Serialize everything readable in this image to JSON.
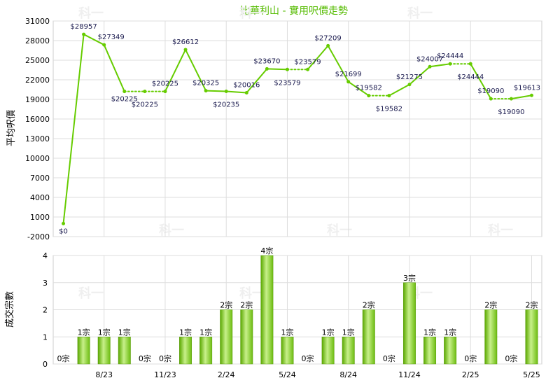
{
  "chart_data": [
    {
      "type": "line",
      "title": "比華利山 - 實用呎價走勢",
      "ylabel": "平均呎價",
      "ylim": [
        -2000,
        31000
      ],
      "yticks": [
        -2000,
        1000,
        4000,
        7000,
        10000,
        13000,
        16000,
        19000,
        22000,
        25000,
        28000,
        31000
      ],
      "series": [
        {
          "values": [
            0,
            28957,
            27349,
            20225,
            20225,
            20225,
            26612,
            20325,
            20235,
            20016,
            23670,
            23579,
            23579,
            27209,
            21699,
            19582,
            19582,
            21275,
            24007,
            24444,
            24444,
            19090,
            19090,
            19613
          ],
          "labels": [
            "$0",
            "$28957",
            "$27349",
            "$20225",
            "$20225",
            "$20225",
            "$26612",
            "$20325",
            "$20235",
            "$20016",
            "$23670",
            "$23579",
            "$23579",
            "$27209",
            "$21699",
            "$19582",
            "$19582",
            "$21275",
            "$24007",
            "$24444",
            "$24444",
            "$19090",
            "$19090",
            "$19613"
          ]
        }
      ],
      "color": "#66cc00",
      "grid": true
    },
    {
      "type": "bar",
      "ylabel": "成交宗數",
      "ylim": [
        0,
        4
      ],
      "yticks": [
        0,
        1,
        2,
        3,
        4
      ],
      "values": [
        0,
        1,
        1,
        1,
        0,
        0,
        1,
        1,
        2,
        2,
        4,
        1,
        0,
        1,
        1,
        2,
        0,
        3,
        1,
        1,
        0,
        2,
        0,
        2
      ],
      "labels": [
        "0宗",
        "1宗",
        "1宗",
        "1宗",
        "0宗",
        "0宗",
        "1宗",
        "1宗",
        "2宗",
        "2宗",
        "4宗",
        "1宗",
        "0宗",
        "1宗",
        "1宗",
        "2宗",
        "0宗",
        "3宗",
        "1宗",
        "1宗",
        "0宗",
        "2宗",
        "0宗",
        "2宗"
      ],
      "x_tick_labels": [
        {
          "index": 2,
          "label": "8/23"
        },
        {
          "index": 5,
          "label": "11/23"
        },
        {
          "index": 8,
          "label": "2/24"
        },
        {
          "index": 11,
          "label": "5/24"
        },
        {
          "index": 14,
          "label": "8/24"
        },
        {
          "index": 17,
          "label": "11/24"
        },
        {
          "index": 20,
          "label": "2/25"
        },
        {
          "index": 23,
          "label": "5/25"
        }
      ],
      "color": "#77cc22",
      "grid": true
    }
  ],
  "watermark": "科一"
}
